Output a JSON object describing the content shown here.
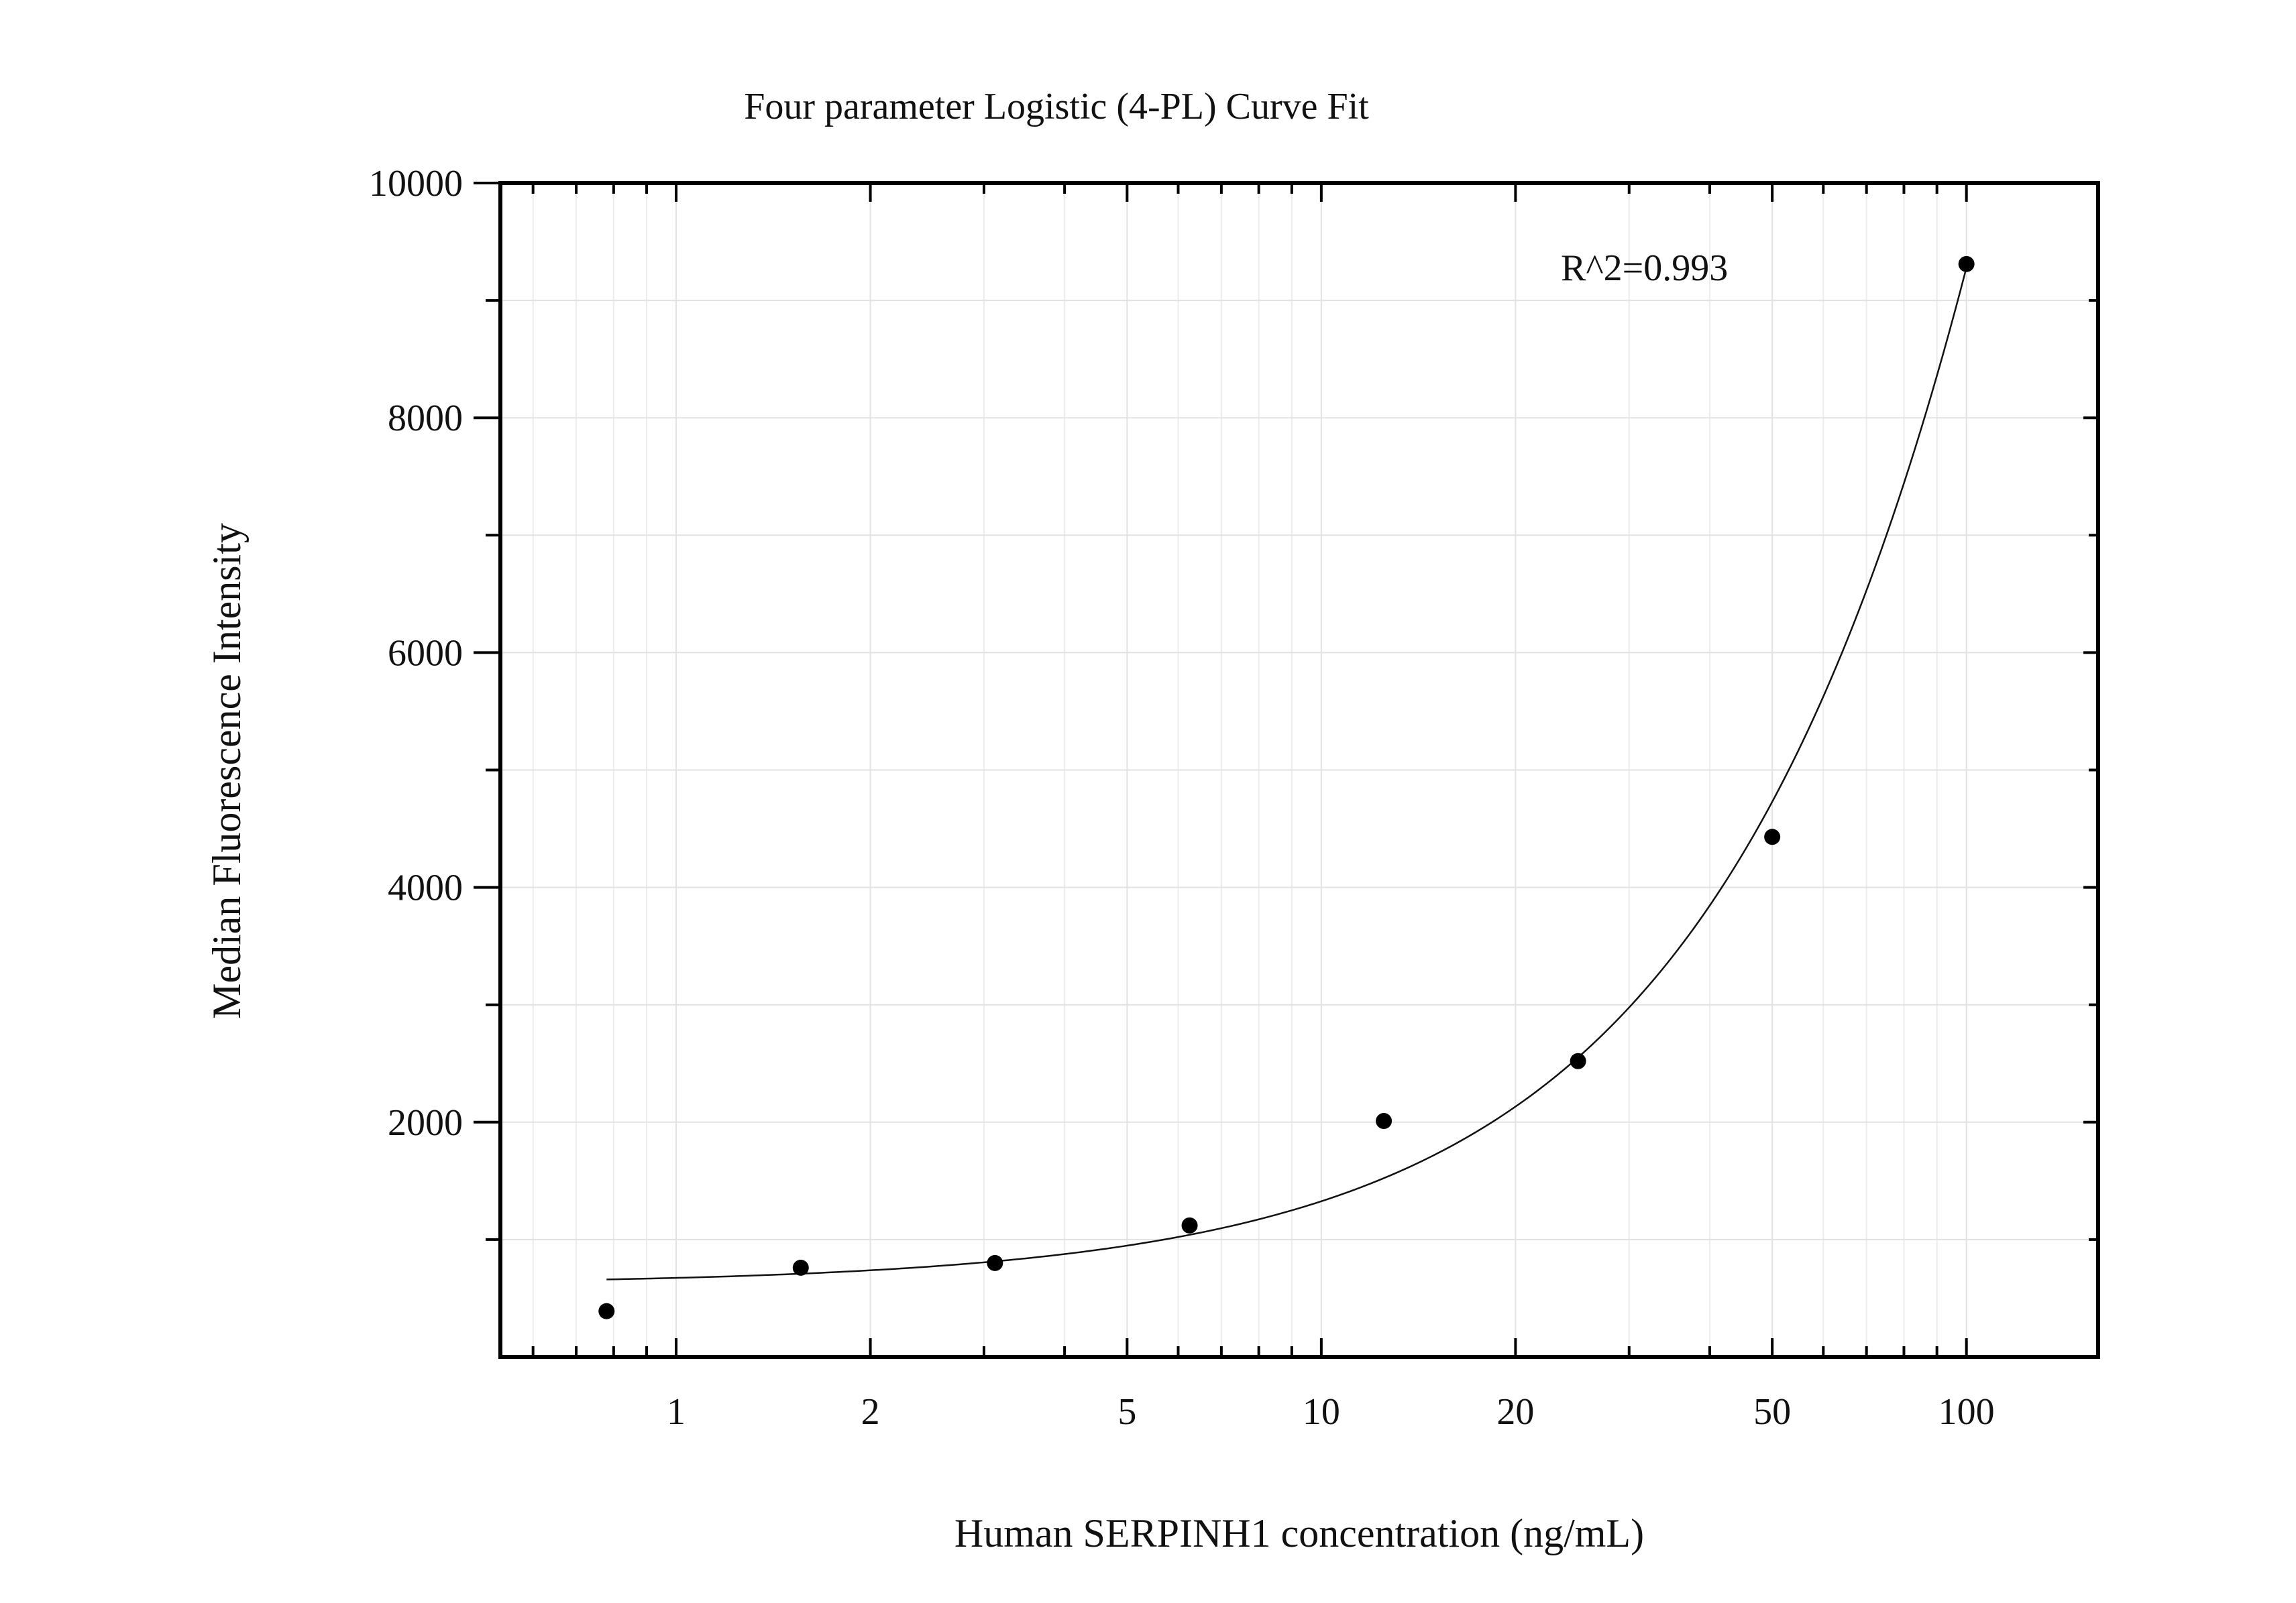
{
  "chart_data": {
    "type": "scatter",
    "title": "Four parameter Logistic (4-PL) Curve Fit",
    "xlabel": "Human SERPINH1 concentration (ng/mL)",
    "ylabel": "Median Fluorescence Intensity",
    "x_scale": "log10",
    "xlim": [
      0.534,
      160
    ],
    "ylim": [
      0,
      10000
    ],
    "x_ticks": [
      1,
      2,
      5,
      10,
      20,
      50,
      100
    ],
    "x_tick_labels": [
      "1",
      "2",
      "5",
      "10",
      "20",
      "50",
      "100"
    ],
    "y_ticks": [
      2000,
      4000,
      6000,
      8000,
      10000
    ],
    "y_tick_labels": [
      "2000",
      "4000",
      "6000",
      "8000",
      "10000"
    ],
    "grid": true,
    "annotation": "R^2=0.993",
    "series": [
      {
        "kind": "points",
        "x": [
          0.78,
          1.56,
          3.12,
          6.25,
          12.5,
          25,
          50,
          100
        ],
        "y": [
          390,
          760,
          800,
          1120,
          2010,
          2520,
          4430,
          9310
        ]
      },
      {
        "kind": "fit-curve",
        "x_range": [
          0.78,
          100
        ],
        "y_range": [
          660,
          9280
        ]
      }
    ]
  }
}
